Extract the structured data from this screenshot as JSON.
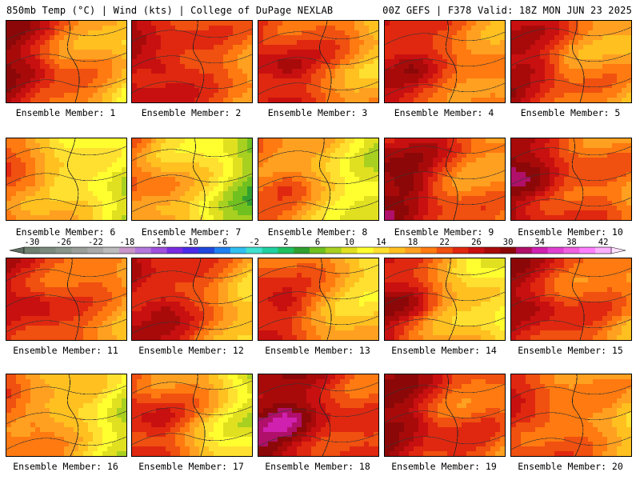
{
  "header": {
    "left": "850mb Temp (°C) | Wind (kts) | College of DuPage NEXLAB",
    "right": "00Z GEFS | F378 Valid: 18Z MON JUN 23 2025"
  },
  "legend": {
    "ticks": [
      "-30",
      "-26",
      "-22",
      "-18",
      "-14",
      "-10",
      "-6",
      "-2",
      "2",
      "6",
      "10",
      "14",
      "18",
      "22",
      "26",
      "30",
      "34",
      "38",
      "42"
    ],
    "colors": [
      "#6f8070",
      "#7c8a7d",
      "#8a958a",
      "#9a9f9a",
      "#aaaaaa",
      "#bcbcbc",
      "#c896c8",
      "#b478dc",
      "#a050dc",
      "#7a2ce0",
      "#4a2ce6",
      "#2048dc",
      "#2080f0",
      "#30c0f0",
      "#40e0d0",
      "#20d0a0",
      "#20c060",
      "#30a030",
      "#70c020",
      "#a8d020",
      "#e0e020",
      "#ffff30",
      "#ffe030",
      "#ffc020",
      "#ffa020",
      "#ff7a10",
      "#f05010",
      "#e02810",
      "#c81010",
      "#a80a0a",
      "#8c0808",
      "#b0106a",
      "#d020b0",
      "#e040d0",
      "#f060e0",
      "#ff80ff",
      "#ffb0ff"
    ]
  },
  "members": [
    {
      "label": "Ensemble Member: 1",
      "base": 26,
      "tilt": -0.55,
      "ripple": 2.0
    },
    {
      "label": "Ensemble Member: 2",
      "base": 26,
      "tilt": -0.3,
      "ripple": 1.5
    },
    {
      "label": "Ensemble Member: 3",
      "base": 25,
      "tilt": -0.35,
      "ripple": 2.0
    },
    {
      "label": "Ensemble Member: 4",
      "base": 25,
      "tilt": -0.3,
      "ripple": 1.5
    },
    {
      "label": "Ensemble Member: 5",
      "base": 25,
      "tilt": -0.4,
      "ripple": 2.0
    },
    {
      "label": "Ensemble Member: 6",
      "base": 19,
      "tilt": -0.45,
      "ripple": 1.8
    },
    {
      "label": "Ensemble Member: 7",
      "base": 19,
      "tilt": -0.55,
      "ripple": 1.8
    },
    {
      "label": "Ensemble Member: 8",
      "base": 20,
      "tilt": -0.45,
      "ripple": 1.6
    },
    {
      "label": "Ensemble Member: 9",
      "base": 27,
      "tilt": -0.4,
      "ripple": 2.2
    },
    {
      "label": "Ensemble Member: 10",
      "base": 27,
      "tilt": -0.4,
      "ripple": 2.0
    },
    {
      "label": "Ensemble Member: 11",
      "base": 25,
      "tilt": -0.3,
      "ripple": 1.5
    },
    {
      "label": "Ensemble Member: 12",
      "base": 26,
      "tilt": -0.45,
      "ripple": 2.0
    },
    {
      "label": "Ensemble Member: 13",
      "base": 23,
      "tilt": -0.4,
      "ripple": 1.8
    },
    {
      "label": "Ensemble Member: 14",
      "base": 24,
      "tilt": -0.6,
      "ripple": 2.0
    },
    {
      "label": "Ensemble Member: 15",
      "base": 26,
      "tilt": -0.35,
      "ripple": 2.0
    },
    {
      "label": "Ensemble Member: 16",
      "base": 20,
      "tilt": -0.45,
      "ripple": 1.8
    },
    {
      "label": "Ensemble Member: 17",
      "base": 23,
      "tilt": -0.55,
      "ripple": 2.2
    },
    {
      "label": "Ensemble Member: 18",
      "base": 29,
      "tilt": -0.3,
      "ripple": 2.0
    },
    {
      "label": "Ensemble Member: 19",
      "base": 27,
      "tilt": -0.35,
      "ripple": 2.2
    },
    {
      "label": "Ensemble Member: 20",
      "base": 23,
      "tilt": -0.3,
      "ripple": 1.8
    }
  ]
}
